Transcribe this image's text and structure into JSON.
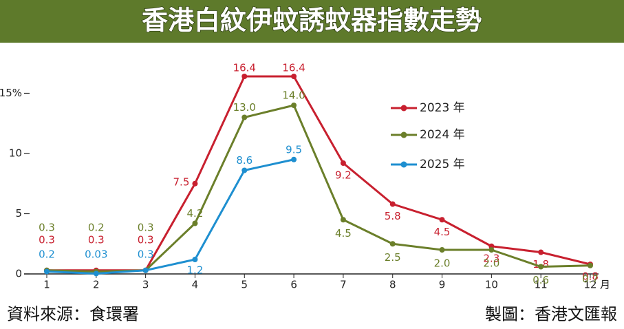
{
  "chart_data": {
    "type": "line",
    "title": "香港白紋伊蚊誘蚊器指數走勢",
    "x_label": "月",
    "categories": [
      "1",
      "2",
      "3",
      "4",
      "5",
      "6",
      "7",
      "8",
      "9",
      "10",
      "11",
      "12"
    ],
    "series": [
      {
        "name": "2023 年",
        "color": "#c8202f",
        "values": [
          0.3,
          0.3,
          0.3,
          7.5,
          16.4,
          16.4,
          9.2,
          5.8,
          4.5,
          2.3,
          1.8,
          0.8
        ]
      },
      {
        "name": "2024 年",
        "color": "#6b7f2a",
        "values": [
          0.3,
          0.2,
          0.3,
          4.2,
          13.0,
          14.0,
          4.5,
          2.5,
          2.0,
          2.0,
          0.6,
          0.7
        ],
        "value_labels": [
          "0.3",
          "0.2",
          "0.3",
          "4.2",
          "13.0",
          "14.0",
          "4.5",
          "2.5",
          "2.0",
          "2.0",
          "0.6",
          "0.7"
        ]
      },
      {
        "name": "2025 年",
        "color": "#1e8fd0",
        "values": [
          0.2,
          0.03,
          0.3,
          1.2,
          8.6,
          9.5,
          null,
          null,
          null,
          null,
          null,
          null
        ]
      }
    ],
    "ylim": [
      0,
      18
    ],
    "yticks": [
      0,
      5,
      10,
      {
        "value": 15,
        "label": "15%"
      }
    ],
    "grid": false,
    "source": "資料來源：食環署",
    "credit": "製圖：香港文匯報"
  }
}
